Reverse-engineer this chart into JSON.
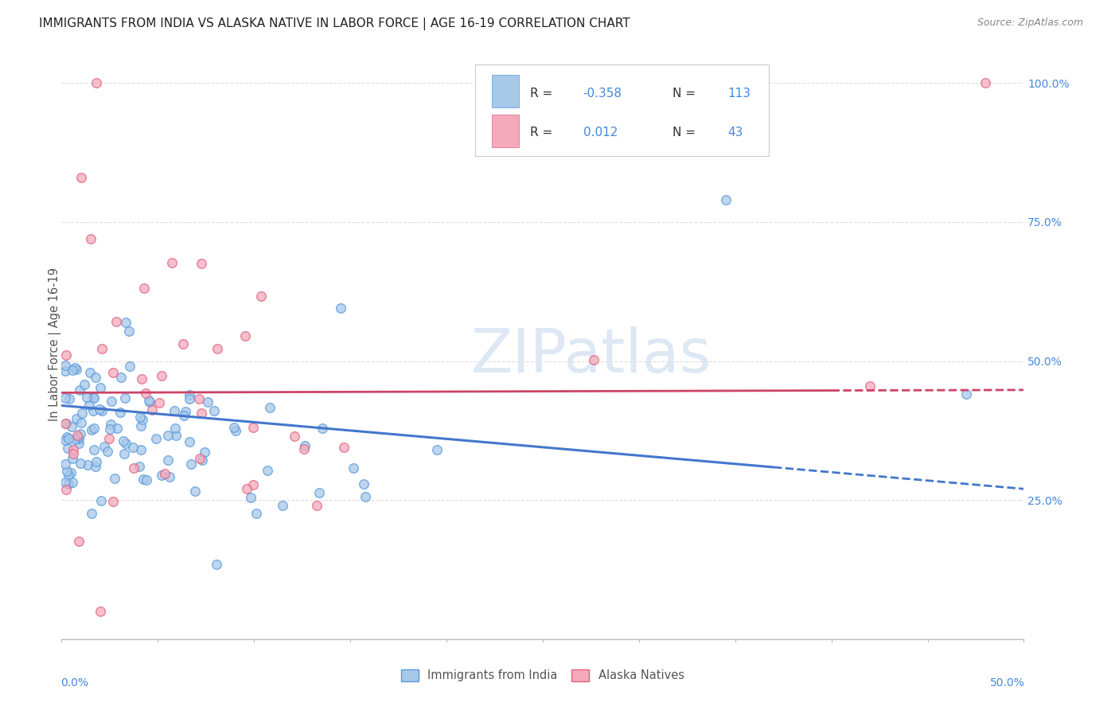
{
  "title": "IMMIGRANTS FROM INDIA VS ALASKA NATIVE IN LABOR FORCE | AGE 16-19 CORRELATION CHART",
  "source": "Source: ZipAtlas.com",
  "ylabel": "In Labor Force | Age 16-19",
  "legend_label1": "Immigrants from India",
  "legend_label2": "Alaska Natives",
  "R1": -0.358,
  "N1": 113,
  "R2": 0.012,
  "N2": 43,
  "blue_fill": "#a8c8e8",
  "pink_fill": "#f4aabb",
  "blue_edge": "#5599dd",
  "pink_edge": "#e06080",
  "blue_trend": "#4477cc",
  "pink_trend": "#cc4466",
  "watermark_color": "#dde8f4",
  "background_color": "#ffffff",
  "xlim": [
    0.0,
    0.5
  ],
  "ylim": [
    0.0,
    1.06
  ],
  "grid_color": "#dddddd",
  "right_label_color": "#4488dd",
  "title_color": "#222222",
  "source_color": "#888888",
  "ylabel_color": "#555555",
  "legend_text_color": "#333333",
  "legend_value_color": "#4488dd"
}
